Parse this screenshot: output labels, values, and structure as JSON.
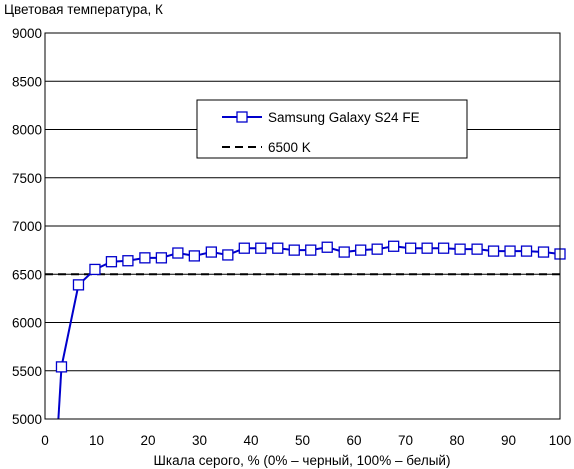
{
  "chart_data": {
    "type": "line",
    "title": "",
    "ylabel": "Цветовая температура, К",
    "xlabel": "Шкала серого, % (0% – черный, 100% – белый)",
    "xlim": [
      0,
      100
    ],
    "ylim": [
      5000,
      9000
    ],
    "xticks": [
      0,
      10,
      20,
      30,
      40,
      50,
      60,
      70,
      80,
      90,
      100
    ],
    "yticks": [
      5000,
      5500,
      6000,
      6500,
      7000,
      7500,
      8000,
      8500,
      9000
    ],
    "grid": "horizontal",
    "legend_position": "top-center",
    "series": [
      {
        "name": "Samsung Galaxy S24 FE",
        "color": "#0000cc",
        "marker": "hollow-square",
        "x": [
          3.2,
          6.5,
          9.7,
          12.9,
          16.1,
          19.4,
          22.6,
          25.8,
          29.0,
          32.3,
          35.5,
          38.7,
          41.9,
          45.2,
          48.4,
          51.6,
          54.8,
          58.1,
          61.3,
          64.5,
          67.7,
          71.0,
          74.2,
          77.4,
          80.6,
          83.9,
          87.1,
          90.3,
          93.5,
          96.8,
          100
        ],
        "values": [
          5540,
          6390,
          6550,
          6630,
          6640,
          6670,
          6670,
          6720,
          6690,
          6730,
          6700,
          6770,
          6770,
          6770,
          6750,
          6750,
          6780,
          6730,
          6750,
          6760,
          6790,
          6770,
          6770,
          6770,
          6760,
          6760,
          6740,
          6740,
          6740,
          6730,
          6710
        ]
      },
      {
        "name": "6500 K",
        "color": "#000000",
        "style": "dashed",
        "x": [
          0,
          100
        ],
        "values": [
          6500,
          6500
        ]
      }
    ]
  }
}
